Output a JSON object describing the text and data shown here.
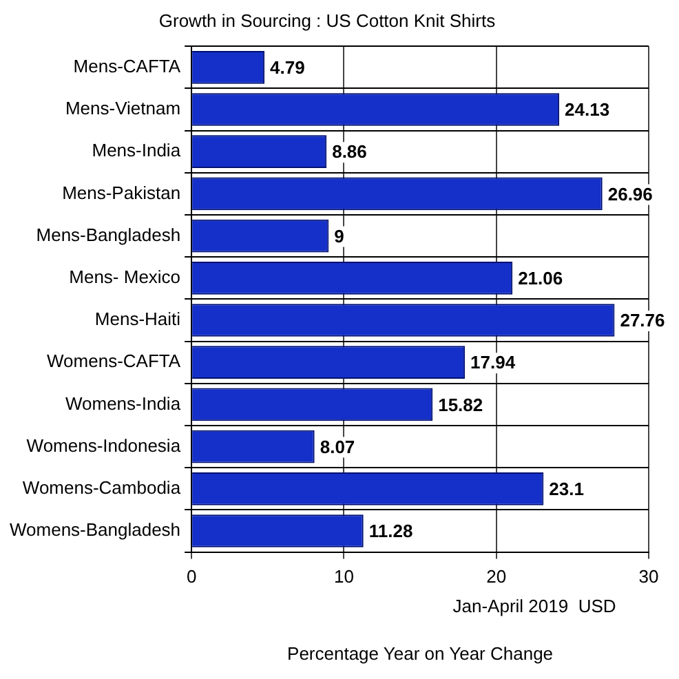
{
  "chart_data": {
    "type": "bar",
    "orientation": "horizontal",
    "title": "Growth in Sourcing : US Cotton Knit Shirts",
    "xlabel": "Percentage Year on Year Change",
    "annotations": [
      "Jan-April 2019  USD"
    ],
    "categories": [
      "Mens-CAFTA",
      "Mens-Vietnam",
      "Mens-India",
      "Mens-Pakistan",
      "Mens-Bangladesh",
      "Mens- Mexico",
      "Mens-Haiti",
      "Womens-CAFTA",
      "Womens-India",
      "Womens-Indonesia",
      "Womens-Cambodia",
      "Womens-Bangladesh"
    ],
    "values": [
      4.79,
      24.13,
      8.86,
      26.96,
      9,
      21.06,
      27.76,
      17.94,
      15.82,
      8.07,
      23.1,
      11.28
    ],
    "color": "#1530c8",
    "xlim": [
      0,
      30
    ],
    "xticks": [
      0,
      10,
      20,
      30
    ],
    "grid": true,
    "data_labels": true,
    "legend": false
  }
}
